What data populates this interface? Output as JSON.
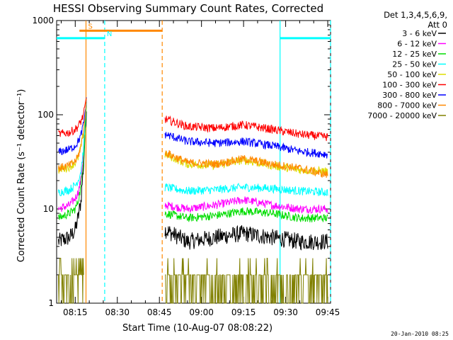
{
  "chart_data": {
    "type": "line",
    "title": "HESSI Observing Summary Count Rates, Corrected",
    "xlabel": "Start Time (10-Aug-07 08:08:22)",
    "ylabel": "Corrected Count Rate (s⁻¹ detector⁻¹)",
    "y_scale": "log",
    "ylim": [
      1,
      1000
    ],
    "xlim": [
      "08:08:22",
      "09:46:00"
    ],
    "x_ticks": [
      "08:15",
      "08:30",
      "08:45",
      "09:00",
      "09:15",
      "09:30",
      "09:45"
    ],
    "y_ticks": [
      "1",
      "10",
      "100",
      "1000"
    ],
    "legend_header": [
      "Det 1,3,4,5,6,9,",
      "Att 0"
    ],
    "legend_position": "right",
    "timestamp": "20-Jan-2010 08:25",
    "series": [
      {
        "name": "3 - 6 keV",
        "color": "#000000",
        "segments": [
          {
            "x": [
              "08:09",
              "08:13",
              "08:15",
              "08:16",
              "08:17",
              "08:18",
              "08:19"
            ],
            "y": [
              4.5,
              5,
              6,
              8,
              12,
              30,
              120
            ]
          },
          {
            "x": [
              "08:47",
              "08:55",
              "09:05",
              "09:15",
              "09:25",
              "09:35",
              "09:45"
            ],
            "y": [
              6,
              4.5,
              5,
              5.5,
              5,
              4.5,
              4.5
            ]
          }
        ]
      },
      {
        "name": "6 - 12 keV",
        "color": "#ff00ff",
        "segments": [
          {
            "x": [
              "08:09",
              "08:13",
              "08:15",
              "08:16",
              "08:17",
              "08:18",
              "08:19"
            ],
            "y": [
              10,
              11,
              13,
              15,
              20,
              40,
              140
            ]
          },
          {
            "x": [
              "08:47",
              "08:55",
              "09:05",
              "09:15",
              "09:25",
              "09:35",
              "09:45"
            ],
            "y": [
              11,
              10,
              11,
              12.5,
              11,
              10,
              10
            ]
          }
        ]
      },
      {
        "name": "12 - 25 keV",
        "color": "#00dd00",
        "segments": [
          {
            "x": [
              "08:09",
              "08:13",
              "08:15",
              "08:16",
              "08:17",
              "08:18",
              "08:19"
            ],
            "y": [
              8,
              9,
              10,
              12,
              17,
              35,
              130
            ]
          },
          {
            "x": [
              "08:47",
              "08:55",
              "09:05",
              "09:15",
              "09:25",
              "09:35",
              "09:45"
            ],
            "y": [
              9,
              8,
              8.5,
              9.5,
              9,
              8,
              8
            ]
          }
        ]
      },
      {
        "name": "25 - 50 keV",
        "color": "#00ffff",
        "segments": [
          {
            "x": [
              "08:09",
              "08:13",
              "08:15",
              "08:16",
              "08:17",
              "08:18",
              "08:19"
            ],
            "y": [
              15,
              16,
              18,
              20,
              25,
              45,
              140
            ]
          },
          {
            "x": [
              "08:47",
              "08:55",
              "09:05",
              "09:15",
              "09:25",
              "09:35",
              "09:45"
            ],
            "y": [
              17,
              15.5,
              16,
              17,
              16.5,
              15.5,
              15
            ]
          }
        ]
      },
      {
        "name": "50 - 100 keV",
        "color": "#dddd00",
        "segments": [
          {
            "x": [
              "08:09",
              "08:13",
              "08:15",
              "08:16",
              "08:17",
              "08:18",
              "08:19"
            ],
            "y": [
              26,
              28,
              31,
              35,
              45,
              65,
              140
            ]
          },
          {
            "x": [
              "08:47",
              "08:55",
              "09:05",
              "09:15",
              "09:25",
              "09:35",
              "09:45"
            ],
            "y": [
              38,
              30,
              29,
              33,
              29,
              26,
              25
            ]
          }
        ]
      },
      {
        "name": "100 - 300 keV",
        "color": "#ff0000",
        "segments": [
          {
            "x": [
              "08:09",
              "08:13",
              "08:15",
              "08:16",
              "08:17",
              "08:18",
              "08:19"
            ],
            "y": [
              62,
              65,
              70,
              75,
              85,
              100,
              150
            ]
          },
          {
            "x": [
              "08:47",
              "08:55",
              "09:05",
              "09:15",
              "09:25",
              "09:35",
              "09:45"
            ],
            "y": [
              90,
              75,
              72,
              78,
              70,
              62,
              58
            ]
          }
        ]
      },
      {
        "name": "300 - 800 keV",
        "color": "#0000ff",
        "segments": [
          {
            "x": [
              "08:09",
              "08:13",
              "08:15",
              "08:16",
              "08:17",
              "08:18",
              "08:19"
            ],
            "y": [
              40,
              43,
              47,
              52,
              60,
              80,
              140
            ]
          },
          {
            "x": [
              "08:47",
              "08:55",
              "09:05",
              "09:15",
              "09:25",
              "09:35",
              "09:45"
            ],
            "y": [
              62,
              52,
              50,
              52,
              47,
              41,
              38
            ]
          }
        ]
      },
      {
        "name": "800 - 7000 keV",
        "color": "#ff8800",
        "segments": [
          {
            "x": [
              "08:09",
              "08:13",
              "08:15",
              "08:16",
              "08:17",
              "08:18",
              "08:19"
            ],
            "y": [
              27,
              29,
              32,
              36,
              46,
              66,
              140
            ]
          },
          {
            "x": [
              "08:47",
              "08:55",
              "09:05",
              "09:15",
              "09:25",
              "09:35",
              "09:45"
            ],
            "y": [
              40,
              31,
              30,
              34,
              30,
              27,
              23
            ]
          }
        ]
      },
      {
        "name": "7000 - 20000 keV",
        "color": "#808000",
        "segments": [
          {
            "x": [
              "08:09",
              "08:13",
              "08:15",
              "08:16",
              "08:17",
              "08:18"
            ],
            "y": [
              2,
              2,
              2,
              3,
              4,
              6
            ]
          },
          {
            "x": [
              "08:47",
              "08:55",
              "09:05",
              "09:15",
              "09:25",
              "09:35",
              "09:45"
            ],
            "y": [
              2,
              1.5,
              1.8,
              2.2,
              1.8,
              1.5,
              1.5
            ]
          }
        ]
      }
    ],
    "flags": [
      {
        "label": "S",
        "color": "#ff8800",
        "level": 780,
        "start": "08:16:30",
        "end": "08:18:50"
      },
      {
        "label": "",
        "color": "#ff8800",
        "level": 780,
        "start": "08:18:50",
        "end": "08:46:00"
      },
      {
        "label": "N",
        "color": "#00ffff",
        "level": 650,
        "start": "08:08:22",
        "end": "08:25:30"
      },
      {
        "label": "",
        "color": "#00ffff",
        "level": 650,
        "start": "09:28:00",
        "end": "09:46:00"
      }
    ],
    "vlines": [
      {
        "x": "08:18:50",
        "color": "#ff8800",
        "style": "solid"
      },
      {
        "x": "08:25:30",
        "color": "#00ffff",
        "style": "dashed"
      },
      {
        "x": "08:46:00",
        "color": "#ff8800",
        "style": "dashed"
      },
      {
        "x": "09:28:00",
        "color": "#00ffff",
        "style": "solid"
      },
      {
        "x": "09:46:00",
        "color": "#00ffff",
        "style": "dashed"
      }
    ]
  }
}
